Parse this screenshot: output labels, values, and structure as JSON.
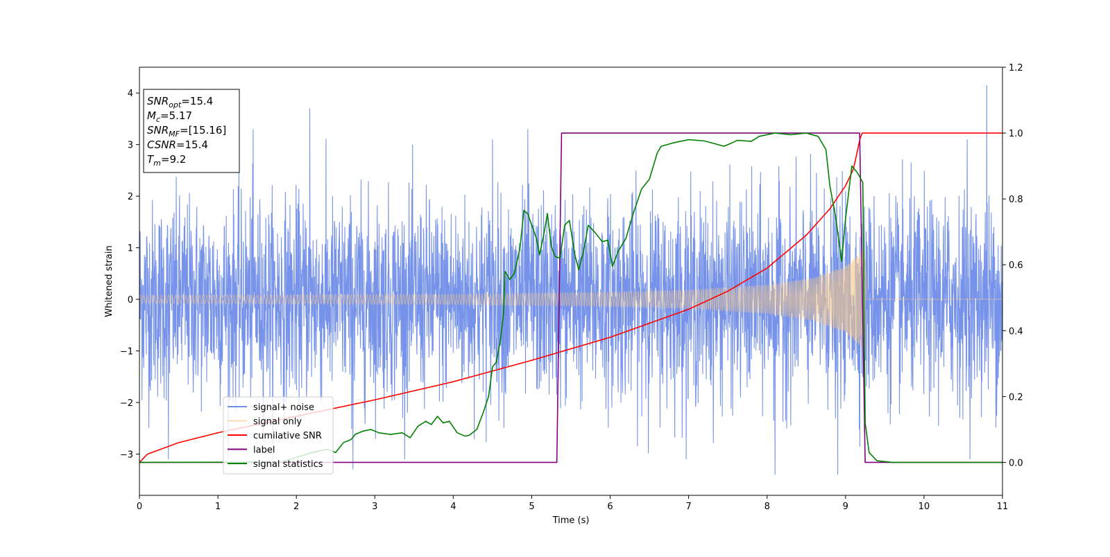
{
  "chart_data": {
    "type": "line",
    "title": "",
    "xlabel": "Time (s)",
    "ylabel": "Whitened strain",
    "y2label": "",
    "xlim": [
      0,
      11
    ],
    "ylim": [
      -3.8,
      4.5
    ],
    "y2lim": [
      -0.1,
      1.2
    ],
    "xticks": [
      0,
      1,
      2,
      3,
      4,
      5,
      6,
      7,
      8,
      9,
      10,
      11
    ],
    "xtick_labels": [
      "0",
      "1",
      "2",
      "3",
      "4",
      "5",
      "6",
      "7",
      "8",
      "9",
      "10",
      "11"
    ],
    "yticks": [
      -3,
      -2,
      -1,
      0,
      1,
      2,
      3,
      4
    ],
    "ytick_labels": [
      "−3",
      "−2",
      "−1",
      "0",
      "1",
      "2",
      "3",
      "4"
    ],
    "y2ticks": [
      0.0,
      0.2,
      0.4,
      0.6,
      0.8,
      1.0,
      1.2
    ],
    "y2tick_labels": [
      "0.0",
      "0.2",
      "0.4",
      "0.6",
      "0.8",
      "1.0",
      "1.2"
    ],
    "grid": false,
    "legend_position": "lower-left",
    "annotation": {
      "lines": [
        {
          "base": "SNR",
          "sub": "opt",
          "rest": "=15.4"
        },
        {
          "base": "M",
          "sub": "c",
          "rest": "=5.17"
        },
        {
          "base": "SNR",
          "sub": "MF",
          "rest": "=[15.16]"
        },
        {
          "base": "CSNR",
          "sub": "",
          "rest": "=15.4"
        },
        {
          "base": "T",
          "sub": "m",
          "rest": "=9.2"
        }
      ]
    },
    "series": [
      {
        "name": "signal+ noise",
        "axis": "left",
        "color": "#4169e1",
        "kind": "noise",
        "x_range": [
          0,
          11
        ],
        "std": 0.95,
        "extremes": [
          {
            "x": 0.37,
            "y": -3.1
          },
          {
            "x": 1.45,
            "y": 3.3
          },
          {
            "x": 2.17,
            "y": 3.7
          },
          {
            "x": 2.72,
            "y": -3.3
          },
          {
            "x": 4.5,
            "y": 3.1
          },
          {
            "x": 4.95,
            "y": 3.3
          },
          {
            "x": 8.1,
            "y": -3.4
          },
          {
            "x": 8.9,
            "y": -3.4
          },
          {
            "x": 10.8,
            "y": 4.15
          },
          {
            "x": 10.55,
            "y": 3.1
          }
        ]
      },
      {
        "name": "signal only",
        "axis": "left",
        "color": "#f5c78a",
        "kind": "chirp",
        "start": 0,
        "merger": 9.25,
        "amplitude_points": [
          {
            "x": 0,
            "y": 0.08
          },
          {
            "x": 4,
            "y": 0.1
          },
          {
            "x": 6,
            "y": 0.14
          },
          {
            "x": 7,
            "y": 0.18
          },
          {
            "x": 8,
            "y": 0.28
          },
          {
            "x": 8.6,
            "y": 0.42
          },
          {
            "x": 9.0,
            "y": 0.65
          },
          {
            "x": 9.25,
            "y": 1.0
          }
        ]
      },
      {
        "name": "cumilative SNR",
        "axis": "right",
        "color": "#ff0000",
        "points": [
          {
            "x": 0,
            "y": 0.0
          },
          {
            "x": 0.1,
            "y": 0.025
          },
          {
            "x": 0.5,
            "y": 0.06
          },
          {
            "x": 1,
            "y": 0.09
          },
          {
            "x": 2,
            "y": 0.14
          },
          {
            "x": 3,
            "y": 0.19
          },
          {
            "x": 4,
            "y": 0.245
          },
          {
            "x": 5,
            "y": 0.31
          },
          {
            "x": 6,
            "y": 0.38
          },
          {
            "x": 7,
            "y": 0.465
          },
          {
            "x": 7.5,
            "y": 0.52
          },
          {
            "x": 8,
            "y": 0.59
          },
          {
            "x": 8.5,
            "y": 0.69
          },
          {
            "x": 8.8,
            "y": 0.77
          },
          {
            "x": 9.0,
            "y": 0.84
          },
          {
            "x": 9.1,
            "y": 0.89
          },
          {
            "x": 9.2,
            "y": 1.0
          },
          {
            "x": 11,
            "y": 1.0
          }
        ]
      },
      {
        "name": "label",
        "axis": "right",
        "color": "#800080",
        "points": [
          {
            "x": 0,
            "y": 0.0
          },
          {
            "x": 5.32,
            "y": 0.0
          },
          {
            "x": 5.38,
            "y": 1.0
          },
          {
            "x": 9.18,
            "y": 1.0
          },
          {
            "x": 9.25,
            "y": 0.0
          },
          {
            "x": 11,
            "y": 0.0
          }
        ]
      },
      {
        "name": "signal statistics",
        "axis": "right",
        "color": "#008000",
        "points": [
          {
            "x": 0,
            "y": 0.0
          },
          {
            "x": 1.8,
            "y": 0.001
          },
          {
            "x": 2.0,
            "y": 0.015
          },
          {
            "x": 2.2,
            "y": 0.03
          },
          {
            "x": 2.4,
            "y": 0.04
          },
          {
            "x": 2.5,
            "y": 0.03
          },
          {
            "x": 2.6,
            "y": 0.06
          },
          {
            "x": 2.7,
            "y": 0.07
          },
          {
            "x": 2.75,
            "y": 0.085
          },
          {
            "x": 2.85,
            "y": 0.095
          },
          {
            "x": 2.95,
            "y": 0.1
          },
          {
            "x": 3.05,
            "y": 0.09
          },
          {
            "x": 3.2,
            "y": 0.085
          },
          {
            "x": 3.35,
            "y": 0.09
          },
          {
            "x": 3.45,
            "y": 0.075
          },
          {
            "x": 3.55,
            "y": 0.11
          },
          {
            "x": 3.65,
            "y": 0.125
          },
          {
            "x": 3.72,
            "y": 0.115
          },
          {
            "x": 3.8,
            "y": 0.14
          },
          {
            "x": 3.87,
            "y": 0.12
          },
          {
            "x": 3.95,
            "y": 0.125
          },
          {
            "x": 4.05,
            "y": 0.09
          },
          {
            "x": 4.15,
            "y": 0.08
          },
          {
            "x": 4.2,
            "y": 0.082
          },
          {
            "x": 4.3,
            "y": 0.1
          },
          {
            "x": 4.38,
            "y": 0.15
          },
          {
            "x": 4.45,
            "y": 0.2
          },
          {
            "x": 4.5,
            "y": 0.29
          },
          {
            "x": 4.55,
            "y": 0.305
          },
          {
            "x": 4.6,
            "y": 0.37
          },
          {
            "x": 4.64,
            "y": 0.45
          },
          {
            "x": 4.66,
            "y": 0.58
          },
          {
            "x": 4.72,
            "y": 0.555
          },
          {
            "x": 4.78,
            "y": 0.575
          },
          {
            "x": 4.85,
            "y": 0.65
          },
          {
            "x": 4.9,
            "y": 0.765
          },
          {
            "x": 4.95,
            "y": 0.755
          },
          {
            "x": 5.0,
            "y": 0.72
          },
          {
            "x": 5.06,
            "y": 0.68
          },
          {
            "x": 5.1,
            "y": 0.63
          },
          {
            "x": 5.16,
            "y": 0.7
          },
          {
            "x": 5.2,
            "y": 0.755
          },
          {
            "x": 5.25,
            "y": 0.655
          },
          {
            "x": 5.3,
            "y": 0.625
          },
          {
            "x": 5.36,
            "y": 0.62
          },
          {
            "x": 5.42,
            "y": 0.72
          },
          {
            "x": 5.48,
            "y": 0.735
          },
          {
            "x": 5.55,
            "y": 0.63
          },
          {
            "x": 5.6,
            "y": 0.585
          },
          {
            "x": 5.66,
            "y": 0.64
          },
          {
            "x": 5.72,
            "y": 0.72
          },
          {
            "x": 5.8,
            "y": 0.7
          },
          {
            "x": 5.9,
            "y": 0.67
          },
          {
            "x": 5.97,
            "y": 0.675
          },
          {
            "x": 6.03,
            "y": 0.595
          },
          {
            "x": 6.1,
            "y": 0.64
          },
          {
            "x": 6.2,
            "y": 0.68
          },
          {
            "x": 6.3,
            "y": 0.76
          },
          {
            "x": 6.4,
            "y": 0.83
          },
          {
            "x": 6.5,
            "y": 0.86
          },
          {
            "x": 6.6,
            "y": 0.94
          },
          {
            "x": 6.65,
            "y": 0.96
          },
          {
            "x": 6.8,
            "y": 0.97
          },
          {
            "x": 7.0,
            "y": 0.98
          },
          {
            "x": 7.2,
            "y": 0.976
          },
          {
            "x": 7.3,
            "y": 0.97
          },
          {
            "x": 7.45,
            "y": 0.96
          },
          {
            "x": 7.55,
            "y": 0.97
          },
          {
            "x": 7.62,
            "y": 0.978
          },
          {
            "x": 7.8,
            "y": 0.975
          },
          {
            "x": 7.9,
            "y": 0.99
          },
          {
            "x": 8.1,
            "y": 1.0
          },
          {
            "x": 8.3,
            "y": 0.995
          },
          {
            "x": 8.5,
            "y": 1.0
          },
          {
            "x": 8.65,
            "y": 0.99
          },
          {
            "x": 8.75,
            "y": 0.95
          },
          {
            "x": 8.8,
            "y": 0.84
          },
          {
            "x": 8.87,
            "y": 0.75
          },
          {
            "x": 8.9,
            "y": 0.7
          },
          {
            "x": 8.95,
            "y": 0.61
          },
          {
            "x": 9.0,
            "y": 0.74
          },
          {
            "x": 9.08,
            "y": 0.9
          },
          {
            "x": 9.15,
            "y": 0.88
          },
          {
            "x": 9.22,
            "y": 0.85
          },
          {
            "x": 9.25,
            "y": 0.12
          },
          {
            "x": 9.3,
            "y": 0.03
          },
          {
            "x": 9.4,
            "y": 0.005
          },
          {
            "x": 9.6,
            "y": 0.0
          },
          {
            "x": 11,
            "y": 0.0
          }
        ]
      }
    ]
  }
}
